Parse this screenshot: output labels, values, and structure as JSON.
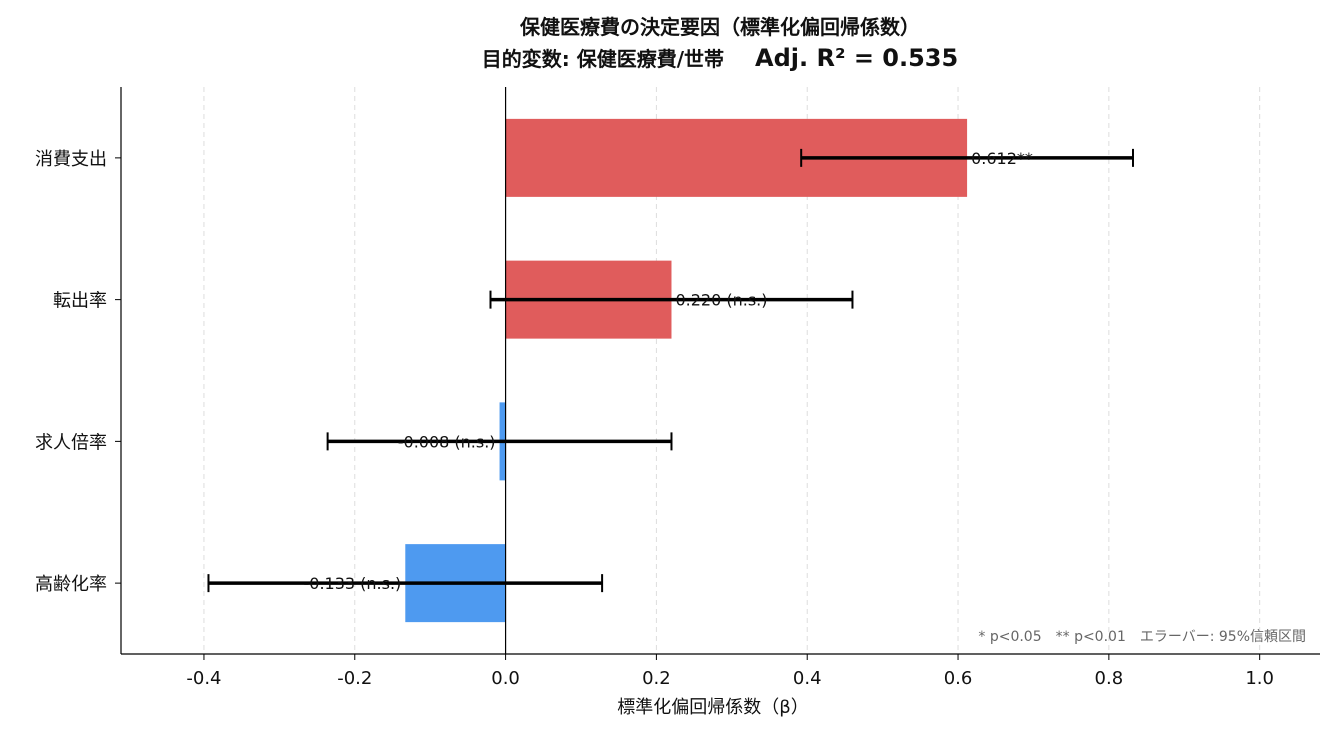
{
  "chart_data": {
    "type": "bar",
    "orientation": "horizontal",
    "title": "保健医療費の決定要因（標準化偏回帰係数）",
    "subtitle": "目的変数: 保健医療費/世帯　Adj. R² = 0.535",
    "subtitle_main": "目的変数: 保健医療費/世帯",
    "subtitle_r2": "Adj. R² = 0.535",
    "xlabel": "標準化偏回帰係数（β）",
    "ylabel": "",
    "xlim": [
      -0.51,
      1.08
    ],
    "xticks": [
      -0.4,
      -0.2,
      0.0,
      0.2,
      0.4,
      0.6,
      0.8,
      1.0
    ],
    "xtick_labels": [
      "-0.4",
      "-0.2",
      "0.0",
      "0.2",
      "0.4",
      "0.6",
      "0.8",
      "1.0"
    ],
    "grid": "x-dashed",
    "categories": [
      "消費支出",
      "転出率",
      "求人倍率",
      "高齢化率"
    ],
    "values": [
      0.612,
      0.22,
      -0.008,
      -0.133
    ],
    "ci_low": [
      0.392,
      -0.02,
      -0.236,
      -0.394
    ],
    "ci_high": [
      0.832,
      0.46,
      0.22,
      0.128
    ],
    "labels": [
      "0.612**",
      "0.220 (n.s.)",
      "-0.008 (n.s.)",
      "-0.133 (n.s.)"
    ],
    "colors": {
      "positive": "#e05c5c",
      "negative": "#4e9af0",
      "error_bar": "#000000",
      "grid": "#dddddd"
    },
    "note": "* p<0.05　** p<0.01　エラーバー: 95%信頼区間"
  }
}
